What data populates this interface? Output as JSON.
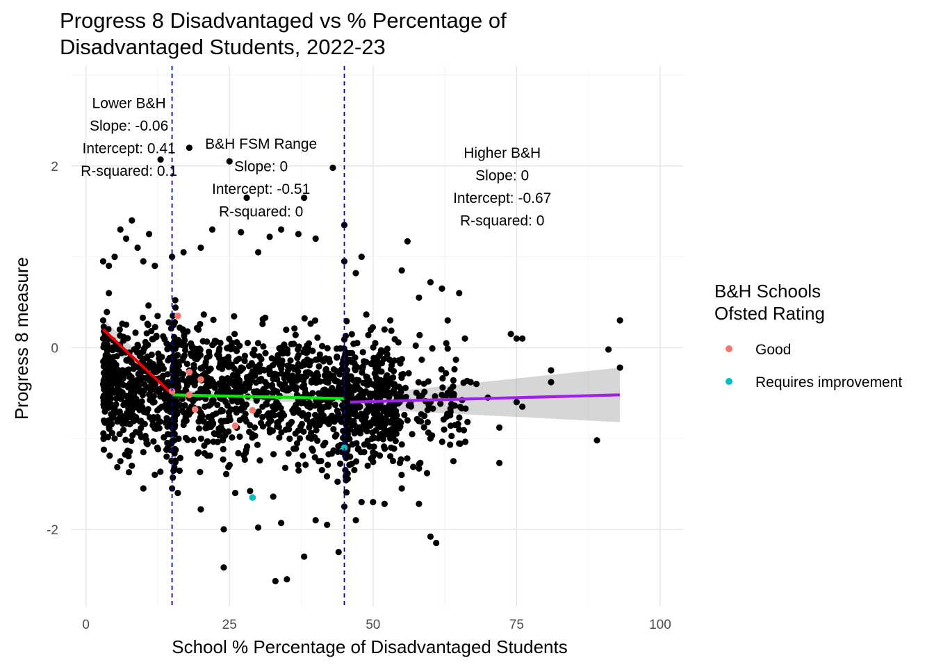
{
  "chart_data": {
    "type": "scatter",
    "title_lines": [
      "Progress 8 Disadvantaged vs % Percentage of",
      "Disadvantaged Students, 2022-23"
    ],
    "xlabel": "School % Percentage of Disadvantaged Students",
    "ylabel": "Progress 8 measure",
    "xlim": [
      -2.5,
      104
    ],
    "ylim": [
      -2.85,
      3.1
    ],
    "x_ticks": [
      0,
      25,
      50,
      75,
      100
    ],
    "y_ticks": [
      -2,
      0,
      2
    ],
    "grid": true,
    "background_points": {
      "color": "#000000",
      "points": [
        [
          3,
          0.95
        ],
        [
          4,
          0.9
        ],
        [
          5,
          1.0
        ],
        [
          6,
          1.3
        ],
        [
          7,
          1.2
        ],
        [
          8,
          1.4
        ],
        [
          9,
          1.1
        ],
        [
          10,
          0.95
        ],
        [
          11,
          1.25
        ],
        [
          12,
          0.9
        ],
        [
          13,
          2.07
        ],
        [
          18,
          2.2
        ],
        [
          25,
          2.05
        ],
        [
          43,
          1.98
        ],
        [
          28,
          1.65
        ],
        [
          38,
          1.65
        ],
        [
          45,
          1.35
        ],
        [
          56,
          1.17
        ],
        [
          22,
          1.3
        ],
        [
          27,
          1.27
        ],
        [
          34,
          1.3
        ],
        [
          37,
          1.25
        ],
        [
          40,
          1.2
        ],
        [
          32,
          1.22
        ],
        [
          20,
          1.1
        ],
        [
          15,
          1.0
        ],
        [
          17,
          1.05
        ],
        [
          30,
          1.05
        ],
        [
          48,
          1.0
        ],
        [
          47,
          0.82
        ],
        [
          55,
          0.85
        ],
        [
          60,
          0.72
        ],
        [
          62,
          0.65
        ],
        [
          65,
          0.6
        ],
        [
          58,
          0.55
        ],
        [
          53,
          0.3
        ],
        [
          52,
          0.2
        ],
        [
          63,
          0.3
        ],
        [
          66,
          0.1
        ],
        [
          74,
          0.15
        ],
        [
          75,
          0.1
        ],
        [
          76,
          0.1
        ],
        [
          93,
          0.3
        ],
        [
          91,
          -0.02
        ],
        [
          93,
          -0.22
        ],
        [
          81,
          -0.25
        ],
        [
          81,
          -0.38
        ],
        [
          75,
          -0.6
        ],
        [
          76,
          -0.65
        ],
        [
          72,
          -0.88
        ],
        [
          65,
          -0.9
        ],
        [
          72,
          -1.27
        ],
        [
          89,
          -1.02
        ],
        [
          70,
          -0.55
        ],
        [
          67,
          -0.38
        ],
        [
          60,
          -0.6
        ],
        [
          64,
          -1.25
        ],
        [
          58,
          -1.33
        ],
        [
          60,
          -2.08
        ],
        [
          61,
          -2.15
        ],
        [
          58,
          -1.72
        ],
        [
          55,
          -1.55
        ],
        [
          52,
          -1.72
        ],
        [
          50,
          -1.7
        ],
        [
          48,
          -1.7
        ],
        [
          47,
          -1.9
        ],
        [
          44,
          -2.25
        ],
        [
          40,
          -1.9
        ],
        [
          38,
          -2.3
        ],
        [
          35,
          -2.55
        ],
        [
          33,
          -2.57
        ],
        [
          34,
          -1.93
        ],
        [
          30,
          -1.98
        ],
        [
          24,
          -2.42
        ],
        [
          24,
          -2.0
        ],
        [
          20,
          -1.78
        ],
        [
          16,
          -1.6
        ],
        [
          15,
          -1.55
        ],
        [
          12,
          -1.4
        ],
        [
          10,
          -1.55
        ],
        [
          8,
          -1.3
        ],
        [
          6,
          -1.25
        ],
        [
          5,
          -1.0
        ],
        [
          4,
          -0.8
        ],
        [
          3.5,
          -0.5
        ],
        [
          3,
          0.1
        ],
        [
          3,
          0.3
        ],
        [
          4,
          0.6
        ],
        [
          46,
          -0.9
        ],
        [
          46,
          -1.2
        ],
        [
          50,
          -1.2
        ],
        [
          53,
          -1.0
        ],
        [
          56,
          -0.8
        ],
        [
          60,
          -1.0
        ],
        [
          63,
          -0.5
        ],
        [
          68,
          -0.4
        ],
        [
          45,
          0.95
        ],
        [
          26,
          -1.6
        ],
        [
          42,
          -1.95
        ],
        [
          45,
          -1.75
        ]
      ]
    },
    "series": [
      {
        "name": "Good",
        "color": "#f8766d",
        "points": [
          [
            16,
            0.35
          ],
          [
            18,
            -0.27
          ],
          [
            20,
            -0.35
          ],
          [
            15,
            -0.48
          ],
          [
            18,
            -0.52
          ],
          [
            19,
            -0.68
          ],
          [
            26,
            -0.86
          ],
          [
            29,
            -0.69
          ]
        ]
      },
      {
        "name": "Requires improvement",
        "color": "#00bfc4",
        "points": [
          [
            45,
            -1.1
          ],
          [
            29,
            -1.65
          ]
        ]
      }
    ],
    "fit_lines": [
      {
        "color": "#ee0000",
        "x": [
          3,
          14.5
        ],
        "y": [
          0.2,
          -0.48
        ],
        "band": [
          0.12,
          0.09
        ]
      },
      {
        "color": "#00ee00",
        "x": [
          15,
          45
        ],
        "y": [
          -0.52,
          -0.56
        ],
        "band": [
          0.05,
          0.05
        ]
      },
      {
        "color": "#a020f0",
        "x": [
          46,
          93
        ],
        "y": [
          -0.6,
          -0.52
        ],
        "band": [
          0.07,
          0.3
        ]
      }
    ],
    "vlines": [
      15,
      45
    ],
    "vline_color": "#0000cc",
    "annotations": [
      {
        "lines": [
          "Lower B&H",
          "Slope: -0.06",
          "Intercept: 0.41",
          "R-squared: 0.1"
        ],
        "x": 7.5,
        "y": 2.7
      },
      {
        "lines": [
          "B&H FSM Range",
          "Slope: 0",
          "Intercept: -0.51",
          "R-squared: 0"
        ],
        "x": 30.5,
        "y": 2.25
      },
      {
        "lines": [
          "Higher B&H",
          "Slope: 0",
          "Intercept: -0.67",
          "R-squared: 0"
        ],
        "x": 72.5,
        "y": 2.15
      }
    ],
    "legend": {
      "title_lines": [
        "B&H Schools",
        "Ofsted Rating"
      ],
      "placement": "right"
    }
  }
}
